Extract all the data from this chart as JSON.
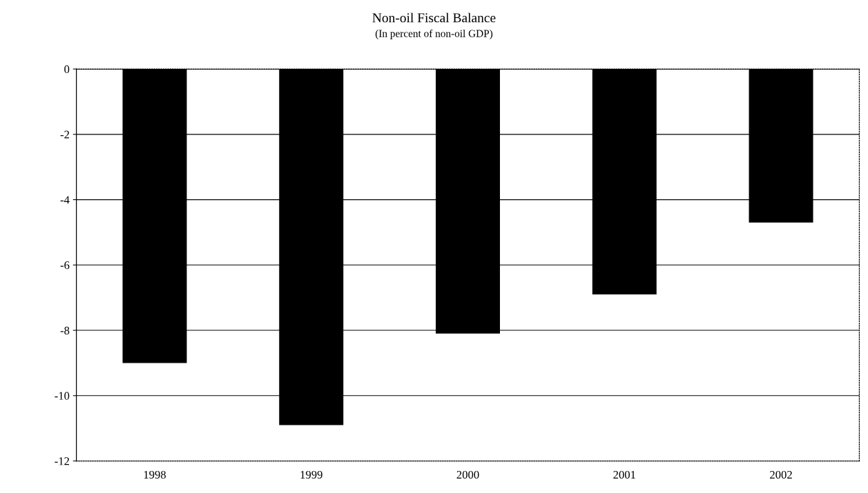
{
  "chart_data": {
    "type": "bar",
    "title": "Non-oil Fiscal Balance",
    "subtitle": "(In percent of non-oil GDP)",
    "categories": [
      "1998",
      "1999",
      "2000",
      "2001",
      "2002"
    ],
    "values": [
      -9.0,
      -10.9,
      -8.1,
      -6.9,
      -4.7
    ],
    "color": "#000000",
    "ylim": [
      -12,
      0
    ],
    "yticks": [
      -12,
      -10,
      -8,
      -6,
      -4,
      -2,
      0
    ],
    "grid": "y"
  }
}
